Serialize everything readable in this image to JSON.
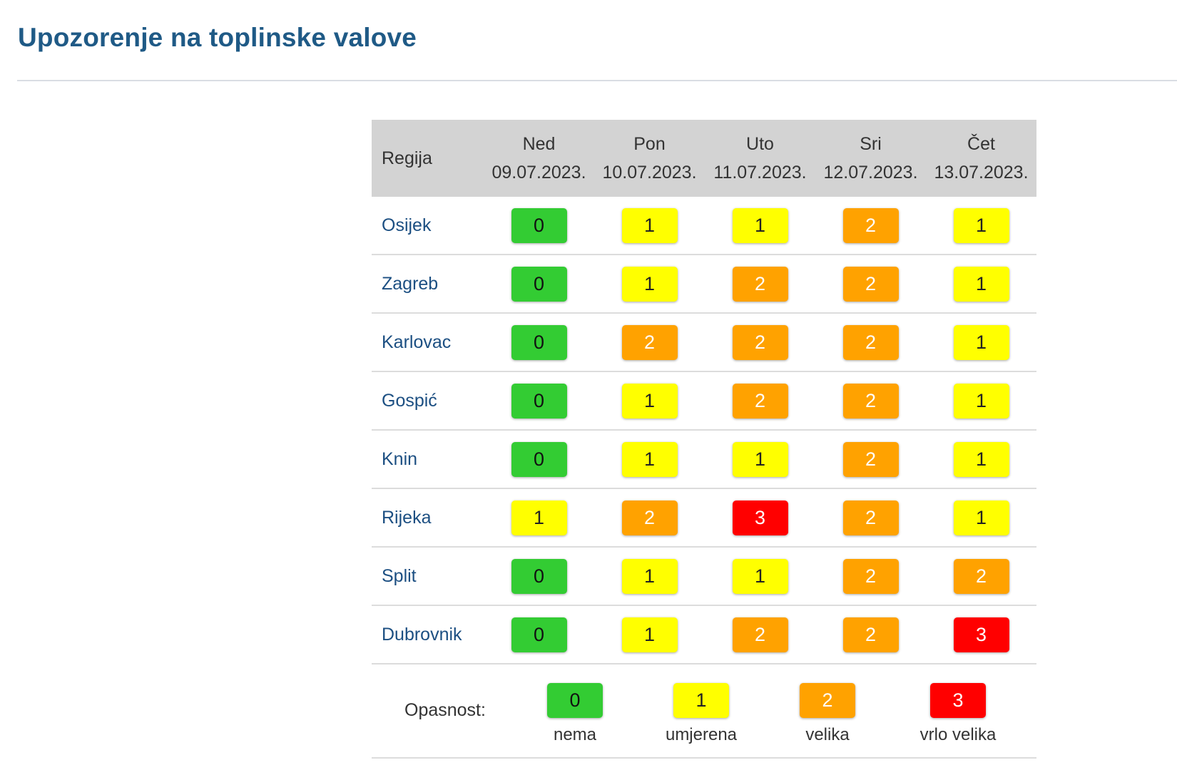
{
  "page": {
    "title": "Upozorenje na toplinske valove"
  },
  "table": {
    "region_header": "Regija",
    "days": [
      {
        "weekday": "Ned",
        "date": "09.07.2023."
      },
      {
        "weekday": "Pon",
        "date": "10.07.2023."
      },
      {
        "weekday": "Uto",
        "date": "11.07.2023."
      },
      {
        "weekday": "Sri",
        "date": "12.07.2023."
      },
      {
        "weekday": "Čet",
        "date": "13.07.2023."
      }
    ],
    "rows": [
      {
        "region": "Osijek",
        "levels": [
          "0",
          "1",
          "1",
          "2",
          "1"
        ]
      },
      {
        "region": "Zagreb",
        "levels": [
          "0",
          "1",
          "2",
          "2",
          "1"
        ]
      },
      {
        "region": "Karlovac",
        "levels": [
          "0",
          "2",
          "2",
          "2",
          "1"
        ]
      },
      {
        "region": "Gospić",
        "levels": [
          "0",
          "1",
          "2",
          "2",
          "1"
        ]
      },
      {
        "region": "Knin",
        "levels": [
          "0",
          "1",
          "1",
          "2",
          "1"
        ]
      },
      {
        "region": "Rijeka",
        "levels": [
          "1",
          "2",
          "3",
          "2",
          "1"
        ]
      },
      {
        "region": "Split",
        "levels": [
          "0",
          "1",
          "1",
          "2",
          "2"
        ]
      },
      {
        "region": "Dubrovnik",
        "levels": [
          "0",
          "1",
          "2",
          "2",
          "3"
        ]
      }
    ]
  },
  "legend": {
    "label": "Opasnost:",
    "items": [
      {
        "level": "0",
        "text": "nema"
      },
      {
        "level": "1",
        "text": "umjerena"
      },
      {
        "level": "2",
        "text": "velika"
      },
      {
        "level": "3",
        "text": "vrlo velika"
      }
    ]
  },
  "colors": {
    "level_0": "#33cc33",
    "level_1": "#ffff00",
    "level_2": "#ffa200",
    "level_3": "#ff0000",
    "title": "#1f5a86",
    "region_link": "#1c4f82",
    "header_bg": "#d3d3d3"
  }
}
